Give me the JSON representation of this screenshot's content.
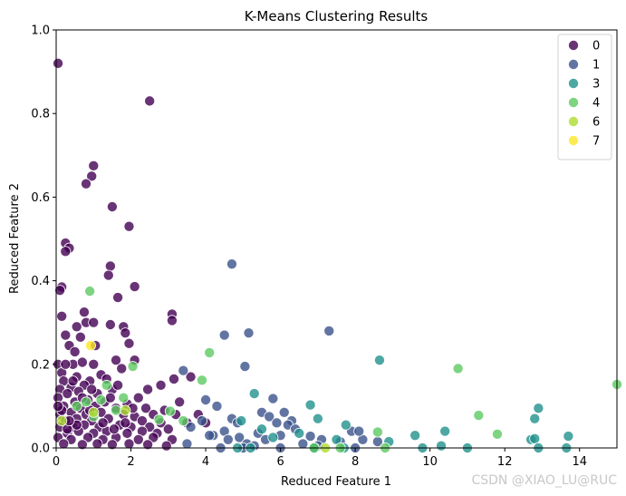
{
  "chart_data": {
    "type": "scatter",
    "title": "K-Means Clustering Results",
    "xlabel": "Reduced Feature 1",
    "ylabel": "Reduced Feature 2",
    "xlim": [
      0,
      15
    ],
    "ylim": [
      0,
      1.0
    ],
    "xticks": [
      0,
      2,
      4,
      6,
      8,
      10,
      12,
      14
    ],
    "yticks": [
      0.0,
      0.2,
      0.4,
      0.6,
      0.8,
      1.0
    ],
    "legend_position": "top-right",
    "grid": false,
    "series": [
      {
        "name": "0",
        "color": "#440154",
        "points": [
          [
            0.05,
            0.92
          ],
          [
            2.5,
            0.83
          ],
          [
            1.0,
            0.675
          ],
          [
            0.95,
            0.65
          ],
          [
            0.8,
            0.632
          ],
          [
            1.5,
            0.577
          ],
          [
            1.95,
            0.53
          ],
          [
            0.25,
            0.49
          ],
          [
            0.35,
            0.478
          ],
          [
            0.25,
            0.47
          ],
          [
            1.45,
            0.435
          ],
          [
            1.4,
            0.413
          ],
          [
            2.1,
            0.386
          ],
          [
            0.15,
            0.385
          ],
          [
            0.1,
            0.377
          ],
          [
            1.65,
            0.36
          ],
          [
            3.1,
            0.32
          ],
          [
            3.1,
            0.305
          ],
          [
            0.15,
            0.315
          ],
          [
            0.75,
            0.325
          ],
          [
            0.55,
            0.29
          ],
          [
            0.8,
            0.3
          ],
          [
            1.0,
            0.3
          ],
          [
            1.45,
            0.295
          ],
          [
            1.8,
            0.29
          ],
          [
            0.25,
            0.27
          ],
          [
            0.65,
            0.265
          ],
          [
            1.85,
            0.275
          ],
          [
            0.35,
            0.245
          ],
          [
            1.05,
            0.245
          ],
          [
            0.5,
            0.23
          ],
          [
            1.95,
            0.25
          ],
          [
            0.05,
            0.2
          ],
          [
            0.45,
            0.2
          ],
          [
            0.7,
            0.205
          ],
          [
            1.0,
            0.2
          ],
          [
            1.6,
            0.21
          ],
          [
            2.1,
            0.21
          ],
          [
            0.15,
            0.18
          ],
          [
            0.55,
            0.17
          ],
          [
            1.2,
            0.175
          ],
          [
            1.75,
            0.19
          ],
          [
            3.15,
            0.165
          ],
          [
            0.2,
            0.16
          ],
          [
            0.9,
            0.16
          ],
          [
            1.35,
            0.165
          ],
          [
            0.1,
            0.14
          ],
          [
            0.4,
            0.145
          ],
          [
            0.75,
            0.15
          ],
          [
            2.8,
            0.15
          ],
          [
            3.6,
            0.17
          ],
          [
            0.3,
            0.13
          ],
          [
            0.6,
            0.135
          ],
          [
            1.1,
            0.13
          ],
          [
            1.5,
            0.14
          ],
          [
            2.2,
            0.12
          ],
          [
            3.3,
            0.11
          ],
          [
            0.05,
            0.12
          ],
          [
            0.5,
            0.11
          ],
          [
            0.85,
            0.115
          ],
          [
            1.3,
            0.11
          ],
          [
            1.9,
            0.105
          ],
          [
            0.2,
            0.1
          ],
          [
            0.65,
            0.095
          ],
          [
            1.05,
            0.1
          ],
          [
            1.6,
            0.095
          ],
          [
            2.4,
            0.095
          ],
          [
            2.9,
            0.09
          ],
          [
            0.1,
            0.08
          ],
          [
            0.4,
            0.085
          ],
          [
            0.8,
            0.08
          ],
          [
            1.2,
            0.085
          ],
          [
            1.8,
            0.08
          ],
          [
            2.1,
            0.075
          ],
          [
            2.6,
            0.08
          ],
          [
            3.2,
            0.08
          ],
          [
            0.25,
            0.065
          ],
          [
            0.55,
            0.07
          ],
          [
            0.95,
            0.065
          ],
          [
            1.4,
            0.07
          ],
          [
            2.3,
            0.065
          ],
          [
            2.8,
            0.06
          ],
          [
            3.5,
            0.06
          ],
          [
            4.0,
            0.06
          ],
          [
            0.1,
            0.05
          ],
          [
            0.45,
            0.05
          ],
          [
            0.75,
            0.055
          ],
          [
            1.15,
            0.05
          ],
          [
            1.7,
            0.055
          ],
          [
            2.0,
            0.05
          ],
          [
            2.5,
            0.05
          ],
          [
            3.0,
            0.045
          ],
          [
            0.3,
            0.035
          ],
          [
            0.6,
            0.04
          ],
          [
            1.0,
            0.035
          ],
          [
            1.35,
            0.04
          ],
          [
            1.9,
            0.035
          ],
          [
            2.3,
            0.04
          ],
          [
            2.7,
            0.035
          ],
          [
            0.05,
            0.025
          ],
          [
            0.4,
            0.02
          ],
          [
            0.85,
            0.025
          ],
          [
            1.25,
            0.02
          ],
          [
            1.6,
            0.025
          ],
          [
            2.2,
            0.02
          ],
          [
            2.6,
            0.025
          ],
          [
            3.1,
            0.02
          ],
          [
            0.2,
            0.01
          ],
          [
            0.7,
            0.008
          ],
          [
            1.1,
            0.01
          ],
          [
            1.5,
            0.008
          ],
          [
            1.95,
            0.01
          ],
          [
            2.45,
            0.008
          ],
          [
            2.95,
            0.005
          ],
          [
            0.3,
            0.045
          ],
          [
            1.55,
            0.045
          ],
          [
            0.15,
            0.09
          ],
          [
            0.9,
            0.09
          ],
          [
            1.25,
            0.06
          ],
          [
            0.55,
            0.055
          ],
          [
            2.05,
            0.095
          ],
          [
            0.7,
            0.12
          ],
          [
            1.45,
            0.12
          ],
          [
            0.35,
            0.065
          ],
          [
            1.85,
            0.06
          ],
          [
            0.45,
            0.16
          ],
          [
            0.95,
            0.14
          ],
          [
            1.65,
            0.15
          ],
          [
            0.05,
            0.1
          ],
          [
            0.25,
            0.2
          ],
          [
            2.45,
            0.14
          ],
          [
            3.8,
            0.08
          ]
        ]
      },
      {
        "name": "1",
        "color": "#3b528b",
        "points": [
          [
            4.7,
            0.44
          ],
          [
            7.3,
            0.28
          ],
          [
            5.15,
            0.275
          ],
          [
            4.5,
            0.27
          ],
          [
            5.05,
            0.195
          ],
          [
            3.4,
            0.185
          ],
          [
            4.0,
            0.115
          ],
          [
            4.3,
            0.1
          ],
          [
            4.7,
            0.07
          ],
          [
            5.5,
            0.085
          ],
          [
            5.7,
            0.075
          ],
          [
            5.8,
            0.118
          ],
          [
            6.1,
            0.085
          ],
          [
            6.3,
            0.065
          ],
          [
            5.9,
            0.06
          ],
          [
            6.2,
            0.055
          ],
          [
            4.2,
            0.03
          ],
          [
            4.5,
            0.04
          ],
          [
            4.9,
            0.025
          ],
          [
            5.4,
            0.035
          ],
          [
            5.6,
            0.02
          ],
          [
            6.0,
            0.03
          ],
          [
            6.4,
            0.045
          ],
          [
            6.8,
            0.028
          ],
          [
            7.1,
            0.02
          ],
          [
            7.6,
            0.015
          ],
          [
            7.9,
            0.04
          ],
          [
            8.2,
            0.02
          ],
          [
            8.6,
            0.015
          ],
          [
            3.6,
            0.05
          ],
          [
            3.9,
            0.065
          ],
          [
            4.1,
            0.03
          ],
          [
            4.6,
            0.02
          ],
          [
            5.1,
            0.01
          ],
          [
            5.3,
            0.005
          ],
          [
            6.6,
            0.01
          ],
          [
            7.0,
            0.005
          ],
          [
            3.5,
            0.01
          ],
          [
            4.4,
            0.0
          ],
          [
            5.0,
            0.0
          ],
          [
            6.0,
            0.0
          ],
          [
            6.9,
            0.0
          ],
          [
            8.1,
            0.04
          ],
          [
            8.0,
            0.0
          ],
          [
            4.85,
            0.06
          ]
        ]
      },
      {
        "name": "3",
        "color": "#21918c",
        "points": [
          [
            8.65,
            0.21
          ],
          [
            6.8,
            0.103
          ],
          [
            5.3,
            0.13
          ],
          [
            7.75,
            0.055
          ],
          [
            7.0,
            0.07
          ],
          [
            5.5,
            0.045
          ],
          [
            4.95,
            0.065
          ],
          [
            5.8,
            0.025
          ],
          [
            6.5,
            0.035
          ],
          [
            7.5,
            0.02
          ],
          [
            8.9,
            0.015
          ],
          [
            9.6,
            0.03
          ],
          [
            10.4,
            0.04
          ],
          [
            10.3,
            0.005
          ],
          [
            12.9,
            0.095
          ],
          [
            12.8,
            0.07
          ],
          [
            12.7,
            0.02
          ],
          [
            12.8,
            0.022
          ],
          [
            13.7,
            0.028
          ],
          [
            13.65,
            0.0
          ],
          [
            12.9,
            0.0
          ],
          [
            7.7,
            0.0
          ],
          [
            6.9,
            0.0
          ],
          [
            9.8,
            0.0
          ],
          [
            11.0,
            0.0
          ],
          [
            5.2,
            0.0
          ],
          [
            4.85,
            0.0
          ]
        ]
      },
      {
        "name": "4",
        "color": "#5ec962",
        "points": [
          [
            0.9,
            0.375
          ],
          [
            4.1,
            0.228
          ],
          [
            15.0,
            0.152
          ],
          [
            3.9,
            0.162
          ],
          [
            10.75,
            0.19
          ],
          [
            11.3,
            0.078
          ],
          [
            11.8,
            0.033
          ],
          [
            8.6,
            0.038
          ],
          [
            2.05,
            0.195
          ],
          [
            1.35,
            0.15
          ],
          [
            1.8,
            0.12
          ],
          [
            1.2,
            0.115
          ],
          [
            0.8,
            0.11
          ],
          [
            1.6,
            0.09
          ],
          [
            0.55,
            0.1
          ],
          [
            1.0,
            0.075
          ],
          [
            3.4,
            0.065
          ],
          [
            2.75,
            0.068
          ],
          [
            3.05,
            0.088
          ],
          [
            7.6,
            0.0
          ],
          [
            8.8,
            0.0
          ],
          [
            6.9,
            0.0
          ]
        ]
      },
      {
        "name": "6",
        "color": "#addc30",
        "points": [
          [
            0.15,
            0.065
          ],
          [
            1.0,
            0.085
          ],
          [
            1.85,
            0.09
          ],
          [
            7.2,
            0.0
          ]
        ]
      },
      {
        "name": "7",
        "color": "#fde725",
        "points": [
          [
            0.92,
            0.245
          ]
        ]
      }
    ]
  },
  "watermark": "CSDN @XIAO_LU@RUC"
}
